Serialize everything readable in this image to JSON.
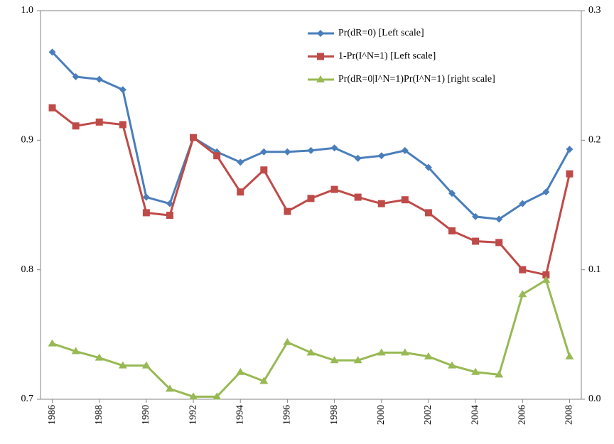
{
  "chart_data": {
    "type": "line",
    "x": [
      1986,
      1987,
      1988,
      1989,
      1990,
      1991,
      1992,
      1993,
      1994,
      1995,
      1996,
      1997,
      1998,
      1999,
      2000,
      2001,
      2002,
      2003,
      2004,
      2005,
      2006,
      2007,
      2008
    ],
    "xlim": [
      1985.5,
      2008.5
    ],
    "xticks": [
      1986,
      1988,
      1990,
      1992,
      1994,
      1996,
      1998,
      2000,
      2002,
      2004,
      2006,
      2008
    ],
    "ylim": [
      0.7,
      1.0
    ],
    "yticks": [
      0.7,
      0.8,
      0.9,
      {
        "value": 1.0,
        "label": "1.0"
      }
    ],
    "y2lim": [
      0,
      0.3
    ],
    "y2ticks": [
      {
        "value": 0,
        "label": "0.0"
      },
      0.1,
      0.2,
      0.3
    ],
    "legend": "top",
    "series": [
      {
        "name": "Pr(dR=0) [Left scale]",
        "color": "#4a7ebb",
        "marker": "diamond",
        "values": [
          0.968,
          0.949,
          0.947,
          0.939,
          0.856,
          0.851,
          0.902,
          0.891,
          0.883,
          0.891,
          0.891,
          0.892,
          0.894,
          0.886,
          0.888,
          0.892,
          0.879,
          0.859,
          0.841,
          0.839,
          0.851,
          0.86,
          0.893
        ]
      },
      {
        "name": "1-Pr(I^N=1) [Left scale]",
        "color": "#be4b48",
        "marker": "square",
        "values": [
          0.925,
          0.911,
          0.914,
          0.912,
          0.844,
          0.842,
          0.902,
          0.888,
          0.86,
          0.877,
          0.845,
          0.855,
          0.862,
          0.856,
          0.851,
          0.854,
          0.844,
          0.83,
          0.822,
          0.821,
          0.8,
          0.796,
          0.874
        ]
      },
      {
        "name": "Pr(dR=0|I^N=1)Pr(I^N=1) [right scale]",
        "color": "#98b954",
        "marker": "triangle",
        "axis": "y2",
        "values": [
          0.043,
          0.037,
          0.032,
          0.026,
          0.026,
          0.008,
          0.002,
          0.002,
          0.021,
          0.014,
          0.044,
          0.036,
          0.03,
          0.03,
          0.036,
          0.036,
          0.033,
          0.026,
          0.021,
          0.019,
          0.081,
          0.092,
          0.033
        ]
      }
    ]
  }
}
